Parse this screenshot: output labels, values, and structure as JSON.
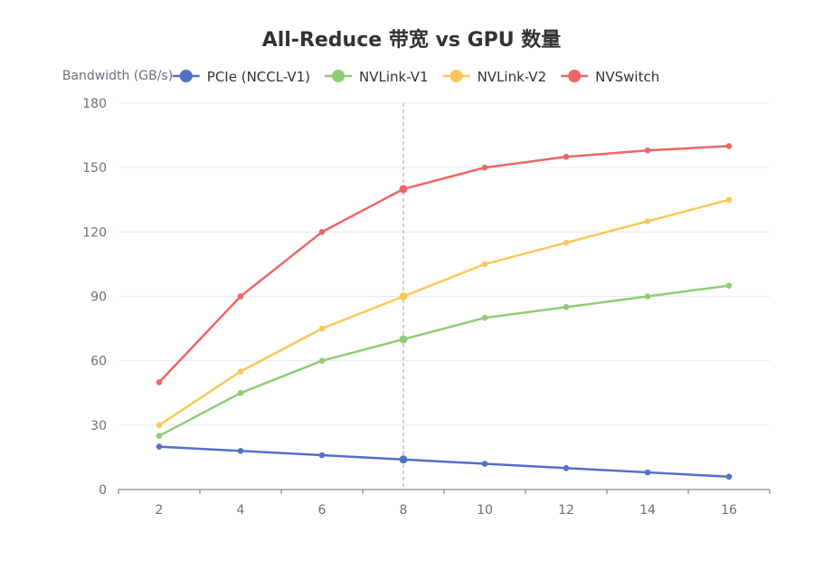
{
  "chart_data": {
    "type": "line",
    "title": "All-Reduce 带宽 vs GPU 数量",
    "ylabel": "Bandwidth (GB/s)",
    "xlabel": "",
    "x": [
      2,
      4,
      6,
      8,
      10,
      12,
      14,
      16
    ],
    "ylim": [
      0,
      180
    ],
    "yticks": [
      0,
      30,
      60,
      90,
      120,
      150,
      180
    ],
    "grid": true,
    "legend_position": "top",
    "highlighted_x": 8,
    "series": [
      {
        "name": "PCIe (NCCL-V1)",
        "color": "#5470c6",
        "values": [
          20,
          18,
          16,
          14,
          12,
          10,
          8,
          6
        ]
      },
      {
        "name": "NVLink-V1",
        "color": "#91cc75",
        "values": [
          25,
          45,
          60,
          70,
          80,
          85,
          90,
          95
        ]
      },
      {
        "name": "NVLink-V2",
        "color": "#fac858",
        "values": [
          30,
          55,
          75,
          90,
          105,
          115,
          125,
          135
        ]
      },
      {
        "name": "NVSwitch",
        "color": "#ee6666",
        "values": [
          50,
          90,
          120,
          140,
          150,
          155,
          158,
          160
        ]
      }
    ]
  }
}
